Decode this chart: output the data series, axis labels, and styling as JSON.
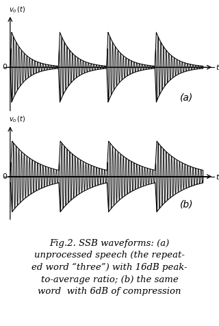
{
  "label_a": "(a)",
  "label_b": "(b)",
  "xlabel": "t",
  "background_color": "#ffffff",
  "wave_color": "#000000",
  "fill_color": "#c8c8c8",
  "n_repeats": 4,
  "carrier_freq": 18,
  "decay_rate_a": 3.5,
  "decay_rate_b": 1.8,
  "peak_amplitude_a": 1.0,
  "peak_amplitude_b": 0.75,
  "noise_floor_a": 0.03,
  "noise_floor_b": 0.13,
  "caption_lines": [
    "Fig.2. SSB waveforms: (a)",
    "unprocessed speech (the repeat-",
    "ed word “three”) with 16dB peak-",
    "to-average ratio; (b) the same",
    "word  with 6dB of compression"
  ]
}
